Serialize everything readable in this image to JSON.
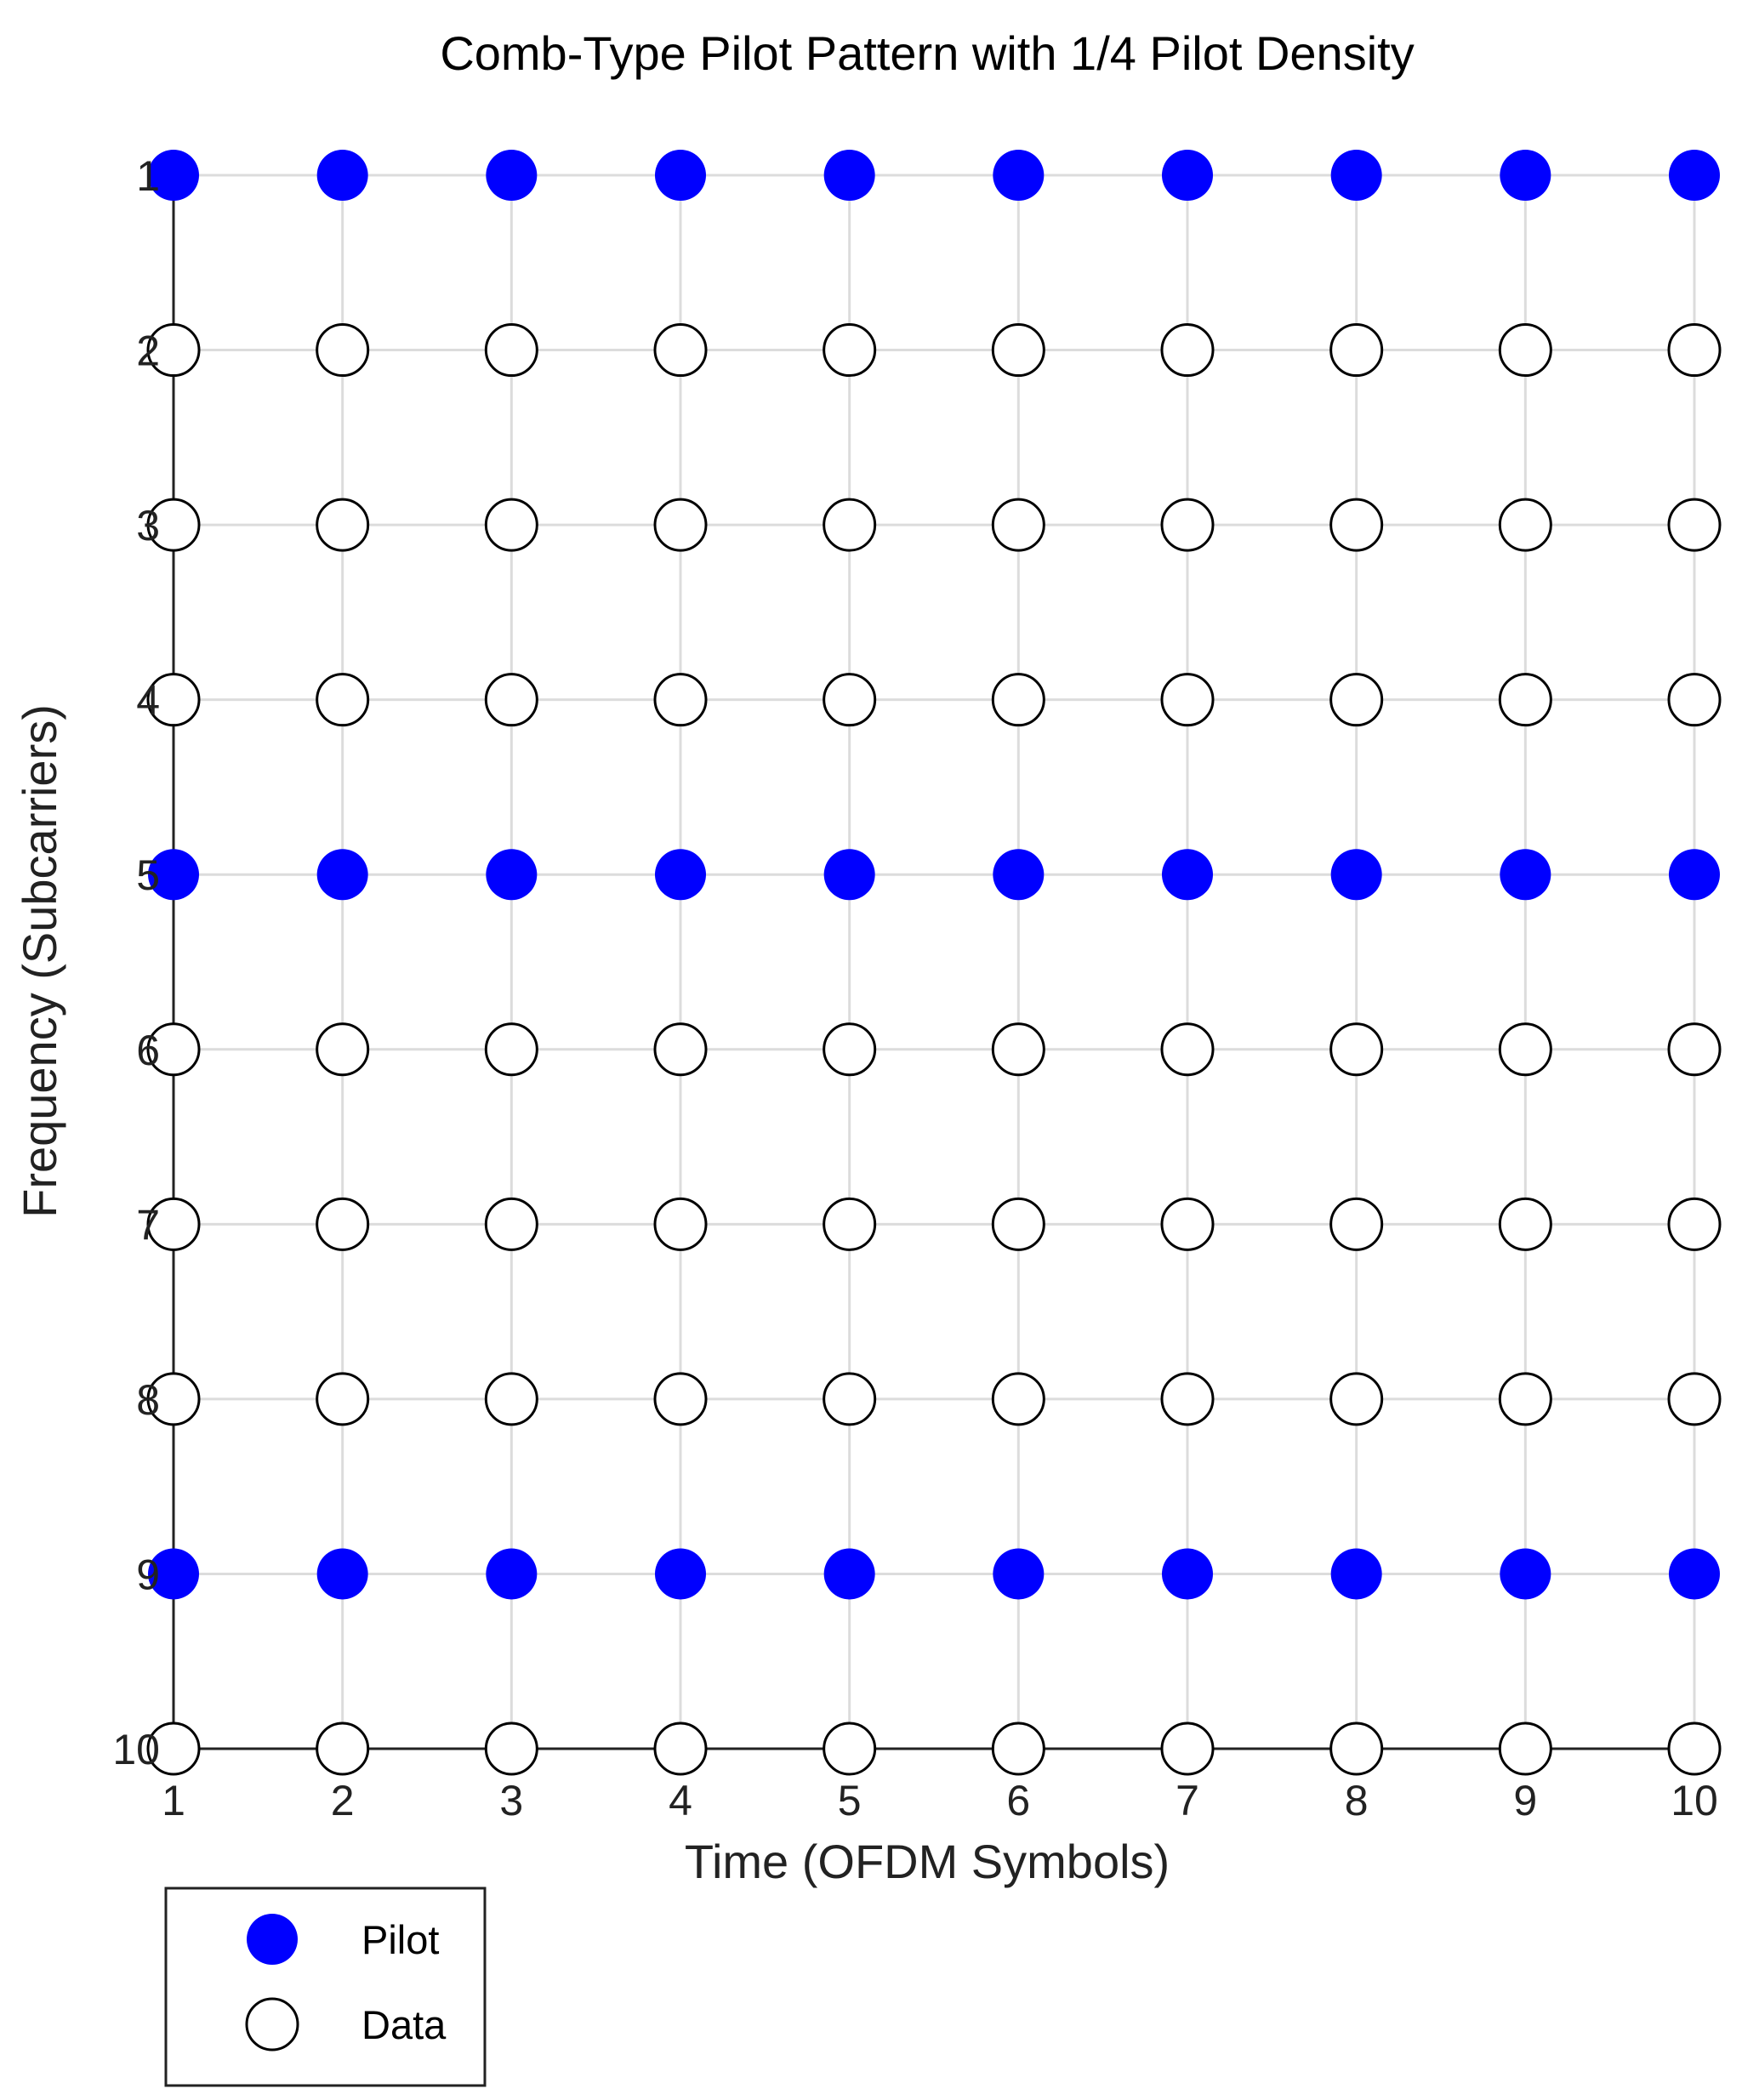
{
  "chart_data": {
    "type": "scatter",
    "title": "Comb-Type Pilot Pattern with 1/4 Pilot Density",
    "xlabel": "Time (OFDM Symbols)",
    "ylabel": "Frequency (Subcarriers)",
    "x_ticks": [
      "1",
      "2",
      "3",
      "4",
      "5",
      "6",
      "7",
      "8",
      "9",
      "10"
    ],
    "y_ticks": [
      "1",
      "2",
      "3",
      "4",
      "5",
      "6",
      "7",
      "8",
      "9",
      "10"
    ],
    "xlim": [
      1,
      10
    ],
    "ylim": [
      10,
      1
    ],
    "y_inverted": true,
    "grid": true,
    "legend_position": "bottom-left, below plot",
    "series": [
      {
        "name": "Pilot",
        "marker": "filled circle",
        "color": "#0000ff",
        "subcarriers": [
          1,
          5,
          9
        ],
        "symbols": [
          1,
          2,
          3,
          4,
          5,
          6,
          7,
          8,
          9,
          10
        ]
      },
      {
        "name": "Data",
        "marker": "hollow circle",
        "color": "#000000",
        "subcarriers": [
          2,
          3,
          4,
          6,
          7,
          8,
          10
        ],
        "symbols": [
          1,
          2,
          3,
          4,
          5,
          6,
          7,
          8,
          9,
          10
        ]
      }
    ]
  }
}
